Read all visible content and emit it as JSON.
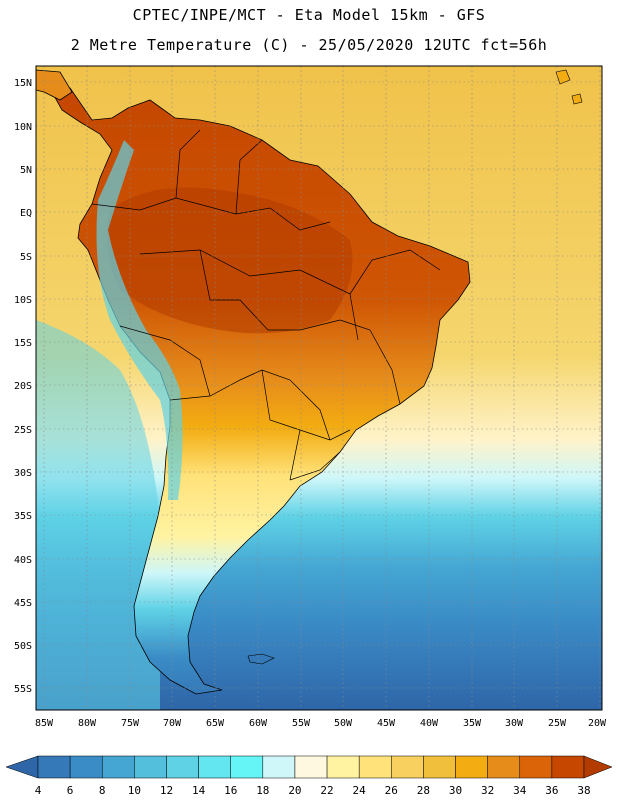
{
  "header": {
    "line1": "CPTEC/INPE/MCT -  Eta Model 15km - GFS",
    "line2": "2 Metre Temperature (C) - 25/05/2020 12UTC fct=56h"
  },
  "lat_labels": [
    "15N",
    "10N",
    "5N",
    "EQ",
    "5S",
    "10S",
    "15S",
    "20S",
    "25S",
    "30S",
    "35S",
    "40S",
    "45S",
    "50S",
    "55S"
  ],
  "lon_labels": [
    "85W",
    "80W",
    "75W",
    "70W",
    "65W",
    "60W",
    "55W",
    "50W",
    "45W",
    "40W",
    "35W",
    "30W",
    "25W",
    "20W"
  ],
  "colorbar": {
    "labels": [
      "4",
      "6",
      "8",
      "10",
      "12",
      "14",
      "16",
      "18",
      "20",
      "22",
      "24",
      "26",
      "28",
      "30",
      "32",
      "34",
      "36",
      "38"
    ],
    "colors": [
      "#2e66a8",
      "#3579b8",
      "#3a8cc6",
      "#45a6d3",
      "#54bfdd",
      "#5fd2e6",
      "#63e6ef",
      "#66f5f7",
      "#cff7f9",
      "#fff8e0",
      "#fff3a2",
      "#ffe27a",
      "#f7d060",
      "#f0bf3b",
      "#f3ac11",
      "#e68c1b",
      "#db6408",
      "#c54700",
      "#b23c00"
    ]
  },
  "map": {
    "ocean_colors": {
      "warm": "#f3cd5d",
      "mild": "#fff3c9",
      "cool": "#5fd2e6",
      "cold": "#3a8cc6",
      "colder": "#2e66a8"
    },
    "land_colors": {
      "hot": "#c54700",
      "warm": "#e68c1b",
      "mild": "#f3ac11",
      "cool": "#fff3a2",
      "andes": "#5fd2e6",
      "patagonia": "#3579b8"
    }
  }
}
